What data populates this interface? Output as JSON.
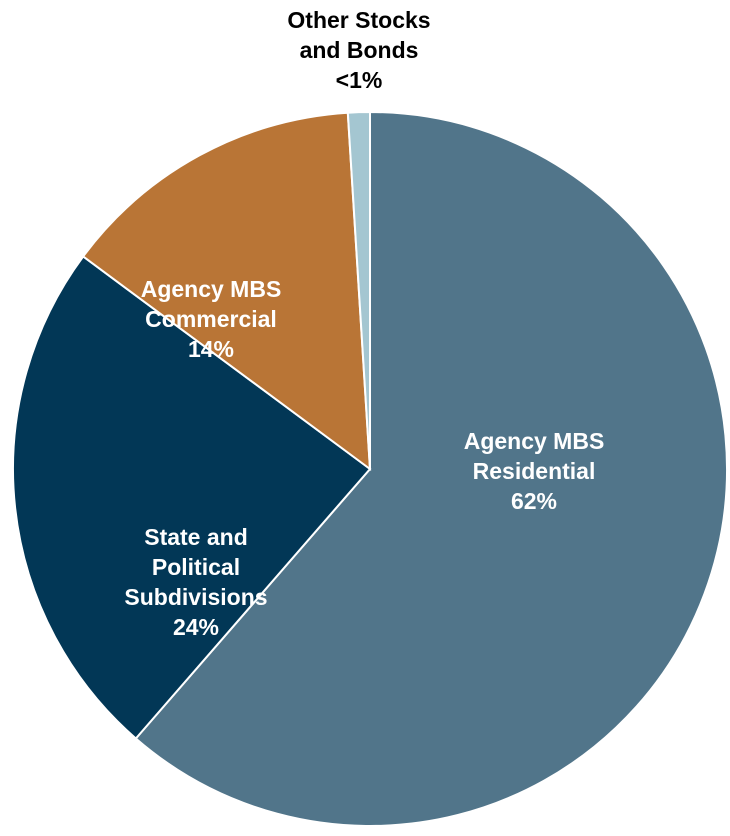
{
  "chart_data": {
    "type": "pie",
    "title": "",
    "slices": [
      {
        "lines": [
          "Agency MBS",
          "Residential"
        ],
        "value": 62,
        "value_label": "62%",
        "color": "#51758a",
        "text_color": "#ffffff"
      },
      {
        "lines": [
          "State and",
          "Political",
          "Subdivisions"
        ],
        "value": 24,
        "value_label": "24%",
        "color": "#023756",
        "text_color": "#ffffff"
      },
      {
        "lines": [
          "Agency MBS",
          "Commercial"
        ],
        "value": 14,
        "value_label": "14%",
        "color": "#b97536",
        "text_color": "#ffffff"
      },
      {
        "lines": [
          "Other Stocks",
          "and Bonds"
        ],
        "value": 1,
        "value_label": "<1%",
        "color": "#a4c6d1",
        "text_color": "#000000"
      }
    ]
  }
}
